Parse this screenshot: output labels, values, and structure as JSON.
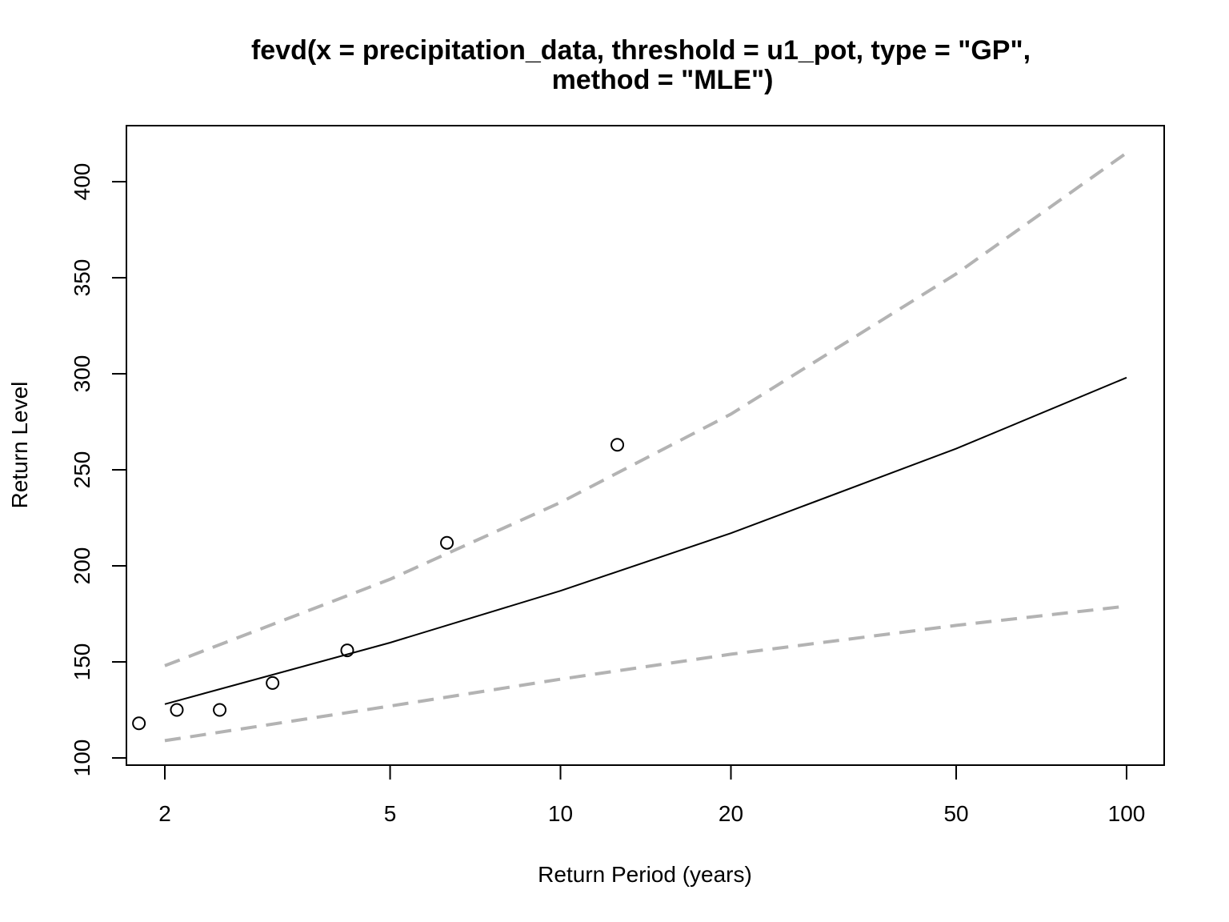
{
  "chart_data": {
    "type": "line",
    "title_line1": "fevd(x = precipitation_data, threshold = u1_pot, type = \"GP\",",
    "title_line2": "method = \"MLE\")",
    "xlabel": "Return Period (years)",
    "ylabel": "Return Level",
    "x_scale": "log",
    "xlim": [
      1.65,
      110
    ],
    "ylim": [
      96,
      425
    ],
    "x_ticks": [
      2,
      5,
      10,
      20,
      50,
      100
    ],
    "x_tick_labels": [
      "2",
      "5",
      "10",
      "20",
      "50",
      "100"
    ],
    "y_ticks": [
      100,
      150,
      200,
      250,
      300,
      350,
      400
    ],
    "y_tick_labels": [
      "100",
      "150",
      "200",
      "250",
      "300",
      "350",
      "400"
    ],
    "grid": false,
    "legend": "none",
    "series": [
      {
        "kind": "line",
        "style": "solid",
        "color": "#000000",
        "x": [
          2,
          5,
          10,
          20,
          50,
          100
        ],
        "y": [
          128,
          160,
          187,
          217,
          261,
          298
        ]
      },
      {
        "kind": "line",
        "style": "dashed",
        "color": "#b3b3b3",
        "x": [
          2,
          5,
          10,
          20,
          50,
          100
        ],
        "y": [
          148,
          193,
          233,
          279,
          352,
          415
        ]
      },
      {
        "kind": "line",
        "style": "dashed",
        "color": "#b3b3b3",
        "x": [
          2,
          5,
          10,
          20,
          50,
          100
        ],
        "y": [
          109,
          127,
          141,
          154,
          169,
          179
        ]
      },
      {
        "kind": "points",
        "style": "open-circle",
        "color": "#000000",
        "x": [
          1.8,
          2.1,
          2.5,
          3.1,
          4.2,
          6.3,
          12.6
        ],
        "y": [
          118,
          125,
          125,
          139,
          156,
          212,
          263
        ]
      }
    ]
  }
}
